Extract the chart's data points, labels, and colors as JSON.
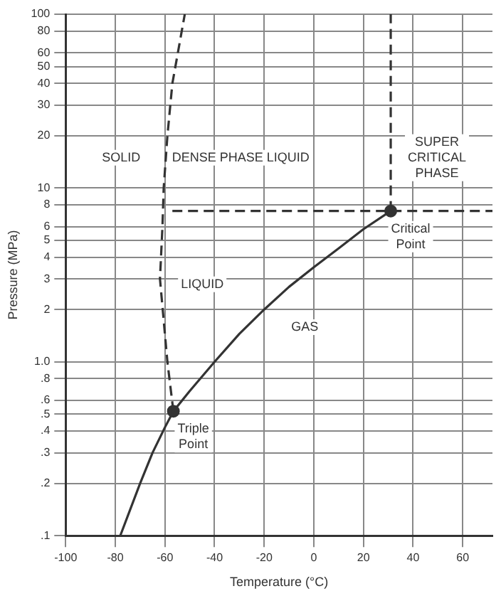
{
  "chart_data": {
    "type": "line",
    "xlabel": "Temperature (°C)",
    "ylabel": "Pressure (MPa)",
    "xlim": [
      -100,
      72
    ],
    "xticks": [
      -100,
      -80,
      -60,
      -40,
      -20,
      0,
      20,
      40,
      60
    ],
    "ylim": [
      0.1,
      100
    ],
    "log": "y",
    "grid": true,
    "legend": false,
    "yticks": [
      {
        "value": 0.1,
        "label": ".1"
      },
      {
        "value": 0.2,
        "label": ".2"
      },
      {
        "value": 0.3,
        "label": ".3"
      },
      {
        "value": 0.4,
        "label": ".4"
      },
      {
        "value": 0.5,
        "label": ".5"
      },
      {
        "value": 0.6,
        "label": ".6"
      },
      {
        "value": 0.8,
        "label": ".8"
      },
      {
        "value": 1,
        "label": "1.0"
      },
      2,
      3,
      4,
      5,
      6,
      8,
      10,
      20,
      30,
      40,
      50,
      60,
      80,
      100
    ],
    "series": [
      {
        "color": "#333333",
        "line_style": "solid",
        "marker": "none",
        "x": [
          -78,
          -70,
          -65,
          -60,
          -56.6,
          -50,
          -40,
          -30,
          -20,
          -10,
          0,
          10,
          20,
          31
        ],
        "values": [
          0.1,
          0.2,
          0.3,
          0.42,
          0.52,
          0.68,
          1.0,
          1.45,
          2.0,
          2.7,
          3.5,
          4.5,
          5.8,
          7.38
        ]
      },
      {
        "color": "#333333",
        "line_style": "dashed",
        "marker": "none",
        "x": [
          -56.6,
          -59,
          -62,
          -61,
          -60.5,
          -59,
          -57,
          -52
        ],
        "values": [
          0.52,
          1.0,
          3,
          6,
          10,
          20,
          40,
          100
        ]
      },
      {
        "color": "#333333",
        "line_style": "dashed",
        "marker": "none",
        "x": [
          -57,
          72
        ],
        "values": [
          7.38,
          7.38
        ]
      },
      {
        "color": "#333333",
        "line_style": "dashed",
        "marker": "none",
        "x": [
          31,
          31
        ],
        "values": [
          7.38,
          100
        ]
      },
      {
        "type": "scatter",
        "color": "#333333",
        "marker": "circle",
        "x": [
          -56.6,
          31
        ],
        "values": [
          0.52,
          7.38
        ]
      }
    ],
    "annotations": [
      "SOLID",
      "DENSE PHASE LIQUID",
      "SUPER\nCRITICAL\nPHASE",
      "LIQUID",
      "GAS",
      {
        "text": "Triple\nPoint",
        "x": -56.6,
        "y": 0.52
      },
      {
        "text": "Critical\nPoint",
        "x": 31,
        "y": 7.38
      }
    ]
  }
}
